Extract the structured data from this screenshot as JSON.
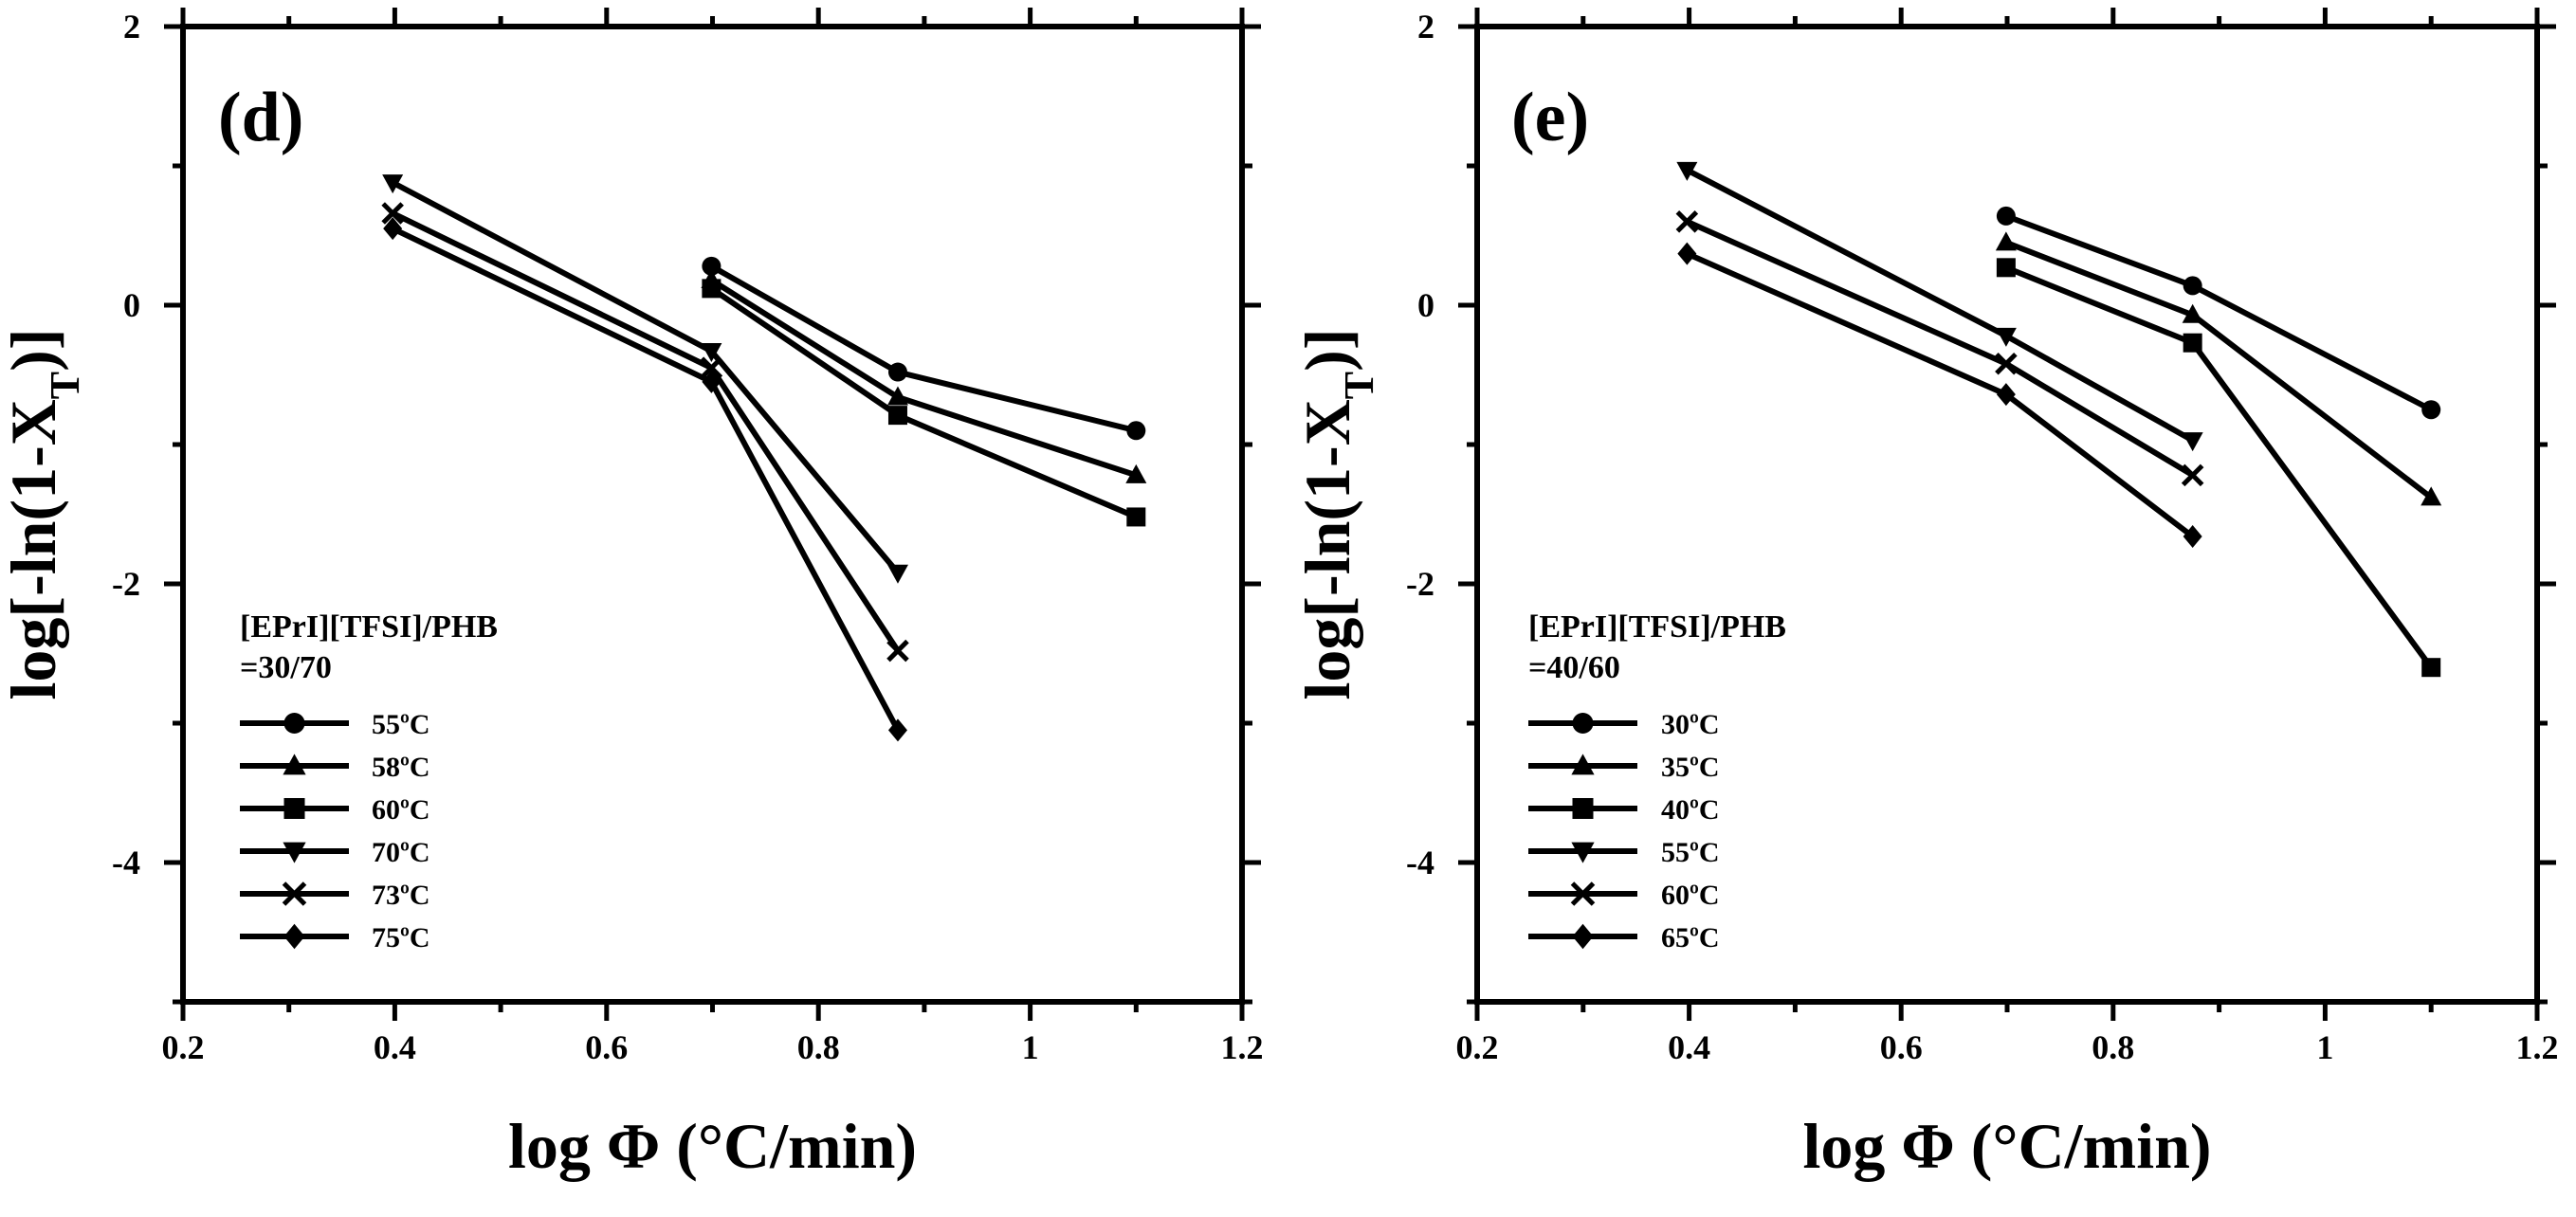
{
  "chart_data": [
    {
      "type": "line",
      "panel_label": "(d)",
      "xlabel": "log Φ (°C/min)",
      "ylabel": "log[-ln(1-X_T)]",
      "xlim": [
        0.2,
        1.2
      ],
      "ylim": [
        -5,
        2
      ],
      "xticks": [
        0.2,
        0.4,
        0.6,
        0.8,
        1,
        1.2
      ],
      "xtick_labels": [
        "0.2",
        "0.4",
        "0.6",
        "0.8",
        "1",
        "1.2"
      ],
      "yticks": [
        2,
        0,
        -2,
        -4
      ],
      "ytick_labels": [
        "2",
        "0",
        "-2",
        "-4"
      ],
      "annotation_line1": "[EPrI][TFSI]/PHB",
      "annotation_line2": "=30/70",
      "legend_position": "lower-left",
      "series": [
        {
          "name": "55ºC",
          "marker": "circle",
          "x": [
            0.699,
            0.875,
            1.1
          ],
          "y": [
            0.28,
            -0.48,
            -0.9
          ]
        },
        {
          "name": "58ºC",
          "marker": "triangle-up",
          "x": [
            0.699,
            0.875,
            1.1
          ],
          "y": [
            0.18,
            -0.66,
            -1.22
          ]
        },
        {
          "name": "60ºC",
          "marker": "square",
          "x": [
            0.699,
            0.875,
            1.1
          ],
          "y": [
            0.12,
            -0.79,
            -1.52
          ]
        },
        {
          "name": "70ºC",
          "marker": "triangle-down",
          "x": [
            0.398,
            0.699,
            0.875
          ],
          "y": [
            0.88,
            -0.33,
            -1.92
          ]
        },
        {
          "name": "73ºC",
          "marker": "x",
          "x": [
            0.398,
            0.699,
            0.875
          ],
          "y": [
            0.66,
            -0.45,
            -2.48
          ]
        },
        {
          "name": "75ºC",
          "marker": "diamond",
          "x": [
            0.398,
            0.699,
            0.875
          ],
          "y": [
            0.55,
            -0.55,
            -3.05
          ]
        }
      ]
    },
    {
      "type": "line",
      "panel_label": "(e)",
      "xlabel": "log Φ (°C/min)",
      "ylabel": "log[-ln(1-X_T)]",
      "xlim": [
        0.2,
        1.2
      ],
      "ylim": [
        -5,
        2
      ],
      "xticks": [
        0.2,
        0.4,
        0.6,
        0.8,
        1,
        1.2
      ],
      "xtick_labels": [
        "0.2",
        "0.4",
        "0.6",
        "0.8",
        "1",
        "1.2"
      ],
      "yticks": [
        2,
        0,
        -2,
        -4
      ],
      "ytick_labels": [
        "2",
        "0",
        "-2",
        "-4"
      ],
      "annotation_line1": "[EPrI][TFSI]/PHB",
      "annotation_line2": "=40/60",
      "legend_position": "lower-left",
      "series": [
        {
          "name": "30ºC",
          "marker": "circle",
          "x": [
            0.699,
            0.875,
            1.1
          ],
          "y": [
            0.64,
            0.14,
            -0.75
          ]
        },
        {
          "name": "35ºC",
          "marker": "triangle-up",
          "x": [
            0.699,
            0.875,
            1.1
          ],
          "y": [
            0.45,
            -0.07,
            -1.38
          ]
        },
        {
          "name": "40ºC",
          "marker": "square",
          "x": [
            0.699,
            0.875,
            1.1
          ],
          "y": [
            0.27,
            -0.27,
            -2.6
          ]
        },
        {
          "name": "55ºC",
          "marker": "triangle-down",
          "x": [
            0.398,
            0.699,
            0.875
          ],
          "y": [
            0.97,
            -0.22,
            -0.97
          ]
        },
        {
          "name": "60ºC",
          "marker": "x",
          "x": [
            0.398,
            0.699,
            0.875
          ],
          "y": [
            0.6,
            -0.42,
            -1.22
          ]
        },
        {
          "name": "65ºC",
          "marker": "diamond",
          "x": [
            0.398,
            0.699,
            0.875
          ],
          "y": [
            0.37,
            -0.64,
            -1.66
          ]
        }
      ]
    }
  ]
}
